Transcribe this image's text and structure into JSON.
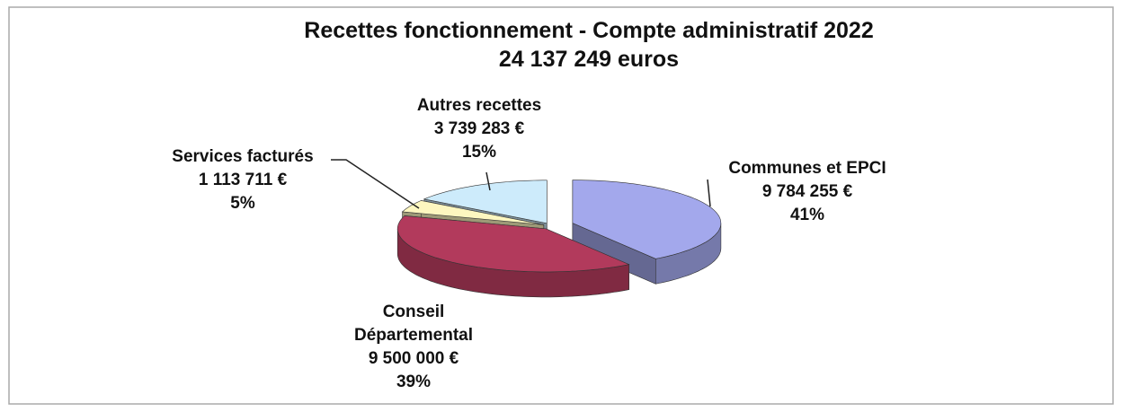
{
  "chart_data": {
    "type": "pie3d",
    "title": "Recettes fonctionnement - Compte administratif 2022",
    "subtitle": "24 137 249 euros",
    "categories": [
      "Communes et EPCI",
      "Conseil Départemental",
      "Services facturés",
      "Autres recettes"
    ],
    "values": [
      9784255,
      9500000,
      1113711,
      3739283
    ],
    "value_labels": [
      "9 784 255 €",
      "9 500 000 €",
      "1 113 711 €",
      "3 739 283 €"
    ],
    "percents": [
      41,
      39,
      5,
      15
    ],
    "percent_labels": [
      "41%",
      "39%",
      "5%",
      "15%"
    ],
    "colors": [
      "#a3a8ec",
      "#b23a5c",
      "#fdf7c0",
      "#cdebfb"
    ]
  }
}
